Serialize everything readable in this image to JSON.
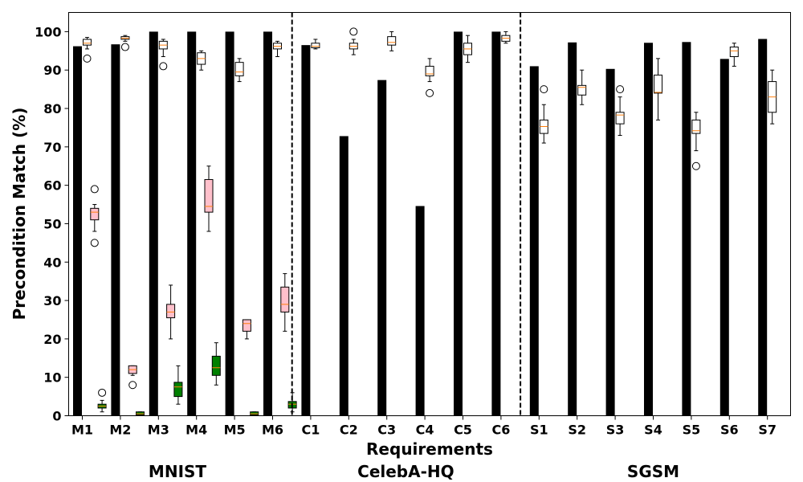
{
  "chart_data": {
    "type": "bar",
    "xlabel": "Requirements",
    "ylabel": "Precondition Match (%)",
    "ylim": [
      0,
      105
    ],
    "yticks": [
      0,
      10,
      20,
      30,
      40,
      50,
      60,
      70,
      80,
      90,
      100
    ],
    "grid": false,
    "categories": [
      "M1",
      "M2",
      "M3",
      "M4",
      "M5",
      "M6",
      "C1",
      "C2",
      "C3",
      "C4",
      "C5",
      "C6",
      "S1",
      "S2",
      "S3",
      "S4",
      "S5",
      "S6",
      "S7"
    ],
    "groups": [
      {
        "name": "MNIST",
        "categories": [
          "M1",
          "M2",
          "M3",
          "M4",
          "M5",
          "M6"
        ]
      },
      {
        "name": "CelebA-HQ",
        "categories": [
          "C1",
          "C2",
          "C3",
          "C4",
          "C5",
          "C6"
        ]
      },
      {
        "name": "SGSM",
        "categories": [
          "S1",
          "S2",
          "S3",
          "S4",
          "S5",
          "S6",
          "S7"
        ]
      }
    ],
    "colors": {
      "bar": "#000000",
      "box_white": "#ffffff",
      "box_pink": "#ffc0cb",
      "box_green": "#008000",
      "median": "#ff7f0e"
    },
    "bars": [
      96.2,
      96.7,
      100,
      100,
      100,
      100,
      96.5,
      72.8,
      87.4,
      54.6,
      100,
      100,
      91.0,
      97.2,
      90.3,
      97.1,
      97.3,
      92.9,
      98.1
    ],
    "boxes": [
      {
        "cat": "M1",
        "slot": 1,
        "color": "white",
        "whislo": 95.5,
        "q1": 96.5,
        "med": 97.0,
        "q3": 98.0,
        "whishi": 98.5,
        "fliers": [
          93
        ]
      },
      {
        "cat": "M1",
        "slot": 2,
        "color": "pink",
        "whislo": 48,
        "q1": 51,
        "med": 53,
        "q3": 54,
        "whishi": 55,
        "fliers": [
          59,
          45
        ]
      },
      {
        "cat": "M1",
        "slot": 3,
        "color": "green",
        "whislo": 1,
        "q1": 2,
        "med": 2.5,
        "q3": 3,
        "whishi": 4,
        "fliers": [
          6
        ]
      },
      {
        "cat": "M2",
        "slot": 1,
        "color": "white",
        "whislo": 97.5,
        "q1": 98,
        "med": 98.3,
        "q3": 98.7,
        "whishi": 99,
        "fliers": [
          96
        ]
      },
      {
        "cat": "M2",
        "slot": 2,
        "color": "pink",
        "whislo": 10.5,
        "q1": 11,
        "med": 12,
        "q3": 13,
        "whishi": 13,
        "fliers": [
          8
        ]
      },
      {
        "cat": "M2",
        "slot": 3,
        "color": "green",
        "whislo": 0,
        "q1": 0.2,
        "med": 0.5,
        "q3": 1,
        "whishi": 1,
        "fliers": []
      },
      {
        "cat": "M3",
        "slot": 1,
        "color": "white",
        "whislo": 93.5,
        "q1": 95.5,
        "med": 96.5,
        "q3": 97.5,
        "whishi": 98,
        "fliers": [
          91
        ]
      },
      {
        "cat": "M3",
        "slot": 2,
        "color": "pink",
        "whislo": 20,
        "q1": 25.5,
        "med": 27,
        "q3": 29,
        "whishi": 34,
        "fliers": []
      },
      {
        "cat": "M3",
        "slot": 3,
        "color": "green",
        "whislo": 3,
        "q1": 5,
        "med": 7.5,
        "q3": 8.7,
        "whishi": 13,
        "fliers": []
      },
      {
        "cat": "M4",
        "slot": 1,
        "color": "white",
        "whislo": 90,
        "q1": 91.5,
        "med": 93,
        "q3": 94.5,
        "whishi": 95,
        "fliers": []
      },
      {
        "cat": "M4",
        "slot": 2,
        "color": "pink",
        "whislo": 48,
        "q1": 53,
        "med": 54.5,
        "q3": 61.5,
        "whishi": 65,
        "fliers": []
      },
      {
        "cat": "M4",
        "slot": 3,
        "color": "green",
        "whislo": 8,
        "q1": 10.5,
        "med": 12.5,
        "q3": 15.5,
        "whishi": 19,
        "fliers": []
      },
      {
        "cat": "M5",
        "slot": 1,
        "color": "white",
        "whislo": 87,
        "q1": 88.5,
        "med": 89.5,
        "q3": 92,
        "whishi": 93,
        "fliers": []
      },
      {
        "cat": "M5",
        "slot": 2,
        "color": "pink",
        "whislo": 20,
        "q1": 22,
        "med": 24,
        "q3": 25,
        "whishi": 25,
        "fliers": []
      },
      {
        "cat": "M5",
        "slot": 3,
        "color": "green",
        "whislo": 0,
        "q1": 0.2,
        "med": 0.5,
        "q3": 1,
        "whishi": 1,
        "fliers": []
      },
      {
        "cat": "M6",
        "slot": 1,
        "color": "white",
        "whislo": 93.5,
        "q1": 95.5,
        "med": 96.2,
        "q3": 97,
        "whishi": 97.5,
        "fliers": []
      },
      {
        "cat": "M6",
        "slot": 2,
        "color": "pink",
        "whislo": 22,
        "q1": 27,
        "med": 29,
        "q3": 33.5,
        "whishi": 37,
        "fliers": []
      },
      {
        "cat": "M6",
        "slot": 3,
        "color": "green",
        "whislo": 1,
        "q1": 2,
        "med": 3,
        "q3": 3.7,
        "whishi": 6,
        "fliers": []
      },
      {
        "cat": "C1",
        "slot": 1,
        "color": "white",
        "whislo": 95.5,
        "q1": 95.8,
        "med": 96.2,
        "q3": 97,
        "whishi": 98,
        "fliers": []
      },
      {
        "cat": "C2",
        "slot": 1,
        "color": "white",
        "whislo": 94,
        "q1": 95.5,
        "med": 96.2,
        "q3": 97,
        "whishi": 98,
        "fliers": [
          100
        ]
      },
      {
        "cat": "C3",
        "slot": 1,
        "color": "white",
        "whislo": 95,
        "q1": 96.5,
        "med": 97.2,
        "q3": 98.7,
        "whishi": 100,
        "fliers": []
      },
      {
        "cat": "C4",
        "slot": 1,
        "color": "white",
        "whislo": 87,
        "q1": 88.5,
        "med": 89,
        "q3": 91,
        "whishi": 93,
        "fliers": [
          84
        ]
      },
      {
        "cat": "C5",
        "slot": 1,
        "color": "white",
        "whislo": 92,
        "q1": 94,
        "med": 95.5,
        "q3": 97,
        "whishi": 99,
        "fliers": []
      },
      {
        "cat": "C6",
        "slot": 1,
        "color": "white",
        "whislo": 97,
        "q1": 97.5,
        "med": 98.3,
        "q3": 99,
        "whishi": 100,
        "fliers": []
      },
      {
        "cat": "S1",
        "slot": 1,
        "color": "white",
        "whislo": 71,
        "q1": 73.5,
        "med": 75.3,
        "q3": 77,
        "whishi": 81,
        "fliers": [
          85
        ]
      },
      {
        "cat": "S2",
        "slot": 1,
        "color": "white",
        "whislo": 81,
        "q1": 83.5,
        "med": 85.5,
        "q3": 86,
        "whishi": 90,
        "fliers": []
      },
      {
        "cat": "S3",
        "slot": 1,
        "color": "white",
        "whislo": 73,
        "q1": 76,
        "med": 78.3,
        "q3": 79,
        "whishi": 83,
        "fliers": [
          85
        ]
      },
      {
        "cat": "S4",
        "slot": 1,
        "color": "white",
        "whislo": 77,
        "q1": 84,
        "med": 84.2,
        "q3": 88.7,
        "whishi": 93,
        "fliers": []
      },
      {
        "cat": "S5",
        "slot": 1,
        "color": "white",
        "whislo": 69,
        "q1": 73.5,
        "med": 74.2,
        "q3": 77,
        "whishi": 79,
        "fliers": [
          65
        ]
      },
      {
        "cat": "S6",
        "slot": 1,
        "color": "white",
        "whislo": 91,
        "q1": 93.5,
        "med": 95,
        "q3": 96,
        "whishi": 97,
        "fliers": []
      },
      {
        "cat": "S7",
        "slot": 1,
        "color": "white",
        "whislo": 76,
        "q1": 79,
        "med": 83,
        "q3": 87,
        "whishi": 90,
        "fliers": []
      }
    ],
    "separators_after": [
      "M6",
      "C6"
    ]
  }
}
